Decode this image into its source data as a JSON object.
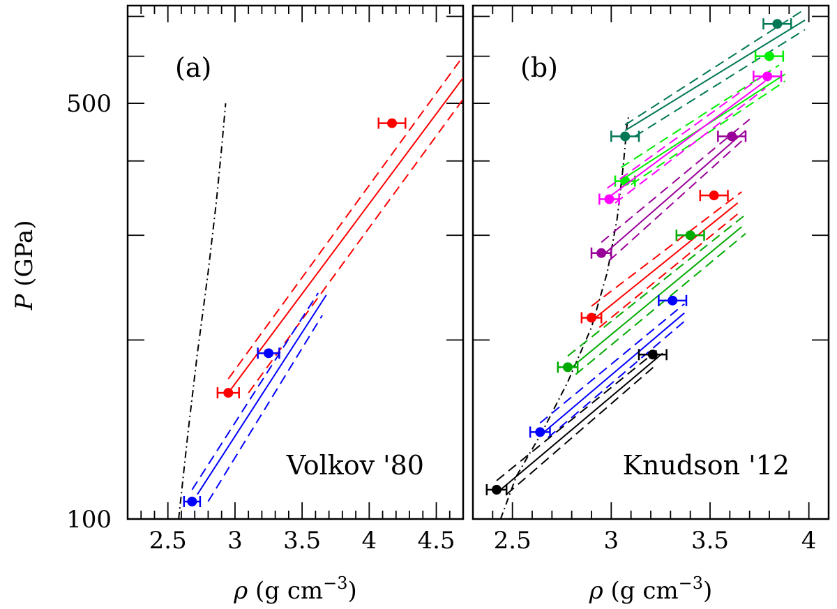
{
  "chart_data": {
    "type": "scatter",
    "ylabel": "P (GPa)",
    "ylabel_symbol": "P",
    "ylabel_unit": "(GPa)",
    "y_scale": "log",
    "ylim": [
      100,
      730
    ],
    "ytick_labels": [
      {
        "value": 100,
        "label": "100"
      },
      {
        "value": 500,
        "label": "500"
      }
    ],
    "ymajor_ticks": [
      100,
      200,
      300,
      400,
      500,
      600,
      700
    ],
    "xlabel_symbol": "ρ",
    "xlabel_unit": "(g cm",
    "xlabel_exp": "−3",
    "xlabel_close": ")",
    "panels": [
      {
        "id": "a",
        "panel_label": "(a)",
        "annotation": "Volkov '80",
        "xlim": [
          2.2,
          4.7
        ],
        "xticks": [
          "2.5",
          "3",
          "3.5",
          "4",
          "4.5"
        ],
        "xtick_values": [
          2.5,
          3,
          3.5,
          4,
          4.5
        ],
        "xminor_step": 0.1,
        "dashdot_curve": [
          [
            2.58,
            100
          ],
          [
            2.65,
            140
          ],
          [
            2.72,
            190
          ],
          [
            2.8,
            260
          ],
          [
            2.86,
            340
          ],
          [
            2.9,
            420
          ],
          [
            2.93,
            500
          ]
        ],
        "series": [
          {
            "name": "red",
            "color": "#ff0000",
            "points": [
              {
                "x": 2.95,
                "y": 163,
                "xerr": 0.08
              },
              {
                "x": 4.17,
                "y": 463,
                "xerr": 0.1
              }
            ],
            "solid": [
              [
                2.95,
                163
              ],
              [
                4.7,
                552
              ]
            ],
            "dashed_upper": [
              [
                2.95,
                172
              ],
              [
                4.7,
                600
              ]
            ],
            "dashed_lower": [
              [
                3.1,
                163
              ],
              [
                4.7,
                508
              ]
            ]
          },
          {
            "name": "blue",
            "color": "#0000ff",
            "points": [
              {
                "x": 2.68,
                "y": 107,
                "xerr": 0.06
              },
              {
                "x": 3.25,
                "y": 190,
                "xerr": 0.08
              }
            ],
            "solid": [
              [
                2.72,
                110
              ],
              [
                3.68,
                238
              ]
            ],
            "dashed_upper": [
              [
                2.68,
                112
              ],
              [
                3.62,
                240
              ]
            ],
            "dashed_lower": [
              [
                2.8,
                107
              ],
              [
                3.65,
                220
              ]
            ]
          }
        ]
      },
      {
        "id": "b",
        "panel_label": "(b)",
        "annotation": "Knudson '12",
        "xlim": [
          2.3,
          4.1
        ],
        "xticks": [
          "2.5",
          "3",
          "3.5",
          "4"
        ],
        "xtick_values": [
          2.5,
          3,
          3.5,
          4
        ],
        "xminor_step": 0.1,
        "dashdot_curve": [
          [
            2.44,
            100
          ],
          [
            2.52,
            118
          ],
          [
            2.65,
            140
          ],
          [
            2.78,
            170
          ],
          [
            2.9,
            210
          ],
          [
            2.98,
            260
          ],
          [
            3.03,
            320
          ],
          [
            3.06,
            390
          ],
          [
            3.08,
            460
          ],
          [
            3.09,
            480
          ]
        ],
        "series": [
          {
            "name": "dark-green",
            "color": "#007755",
            "points": [
              {
                "x": 3.07,
                "y": 440,
                "xerr": 0.07
              },
              {
                "x": 3.84,
                "y": 680,
                "xerr": 0.07
              }
            ],
            "solid": [
              [
                3.07,
                450
              ],
              [
                3.98,
                690
              ]
            ],
            "dashed_upper": [
              [
                3.07,
                460
              ],
              [
                3.98,
                720
              ]
            ],
            "dashed_lower": [
              [
                3.12,
                440
              ],
              [
                3.98,
                665
              ]
            ]
          },
          {
            "name": "bright-green",
            "color": "#00ee00",
            "points": [
              {
                "x": 3.07,
                "y": 370,
                "xerr": 0.05
              },
              {
                "x": 3.8,
                "y": 600,
                "xerr": 0.07
              }
            ],
            "solid": [
              [
                3.07,
                375
              ],
              [
                3.88,
                560
              ]
            ],
            "dashed_upper": [
              [
                3.05,
                390
              ],
              [
                3.85,
                580
              ]
            ],
            "dashed_lower": [
              [
                3.1,
                365
              ],
              [
                3.88,
                545
              ]
            ]
          },
          {
            "name": "magenta",
            "color": "#ff00ff",
            "points": [
              {
                "x": 2.99,
                "y": 345,
                "xerr": 0.05
              },
              {
                "x": 3.79,
                "y": 555,
                "xerr": 0.07
              }
            ],
            "solid": [
              [
                3.0,
                350
              ],
              [
                3.78,
                545
              ]
            ],
            "dashed_upper": [
              [
                2.98,
                360
              ],
              [
                3.78,
                560
              ]
            ],
            "dashed_lower": [
              [
                3.02,
                340
              ],
              [
                3.78,
                530
              ]
            ]
          },
          {
            "name": "purple",
            "color": "#990099",
            "points": [
              {
                "x": 2.95,
                "y": 280,
                "xerr": 0.05
              },
              {
                "x": 3.61,
                "y": 440,
                "xerr": 0.07
              }
            ],
            "solid": [
              [
                2.97,
                280
              ],
              [
                3.68,
                450
              ]
            ],
            "dashed_upper": [
              [
                2.95,
                292
              ],
              [
                3.7,
                470
              ]
            ],
            "dashed_lower": [
              [
                2.99,
                272
              ],
              [
                3.68,
                438
              ]
            ]
          },
          {
            "name": "red",
            "color": "#ff0000",
            "points": [
              {
                "x": 2.9,
                "y": 218,
                "xerr": 0.05
              },
              {
                "x": 3.52,
                "y": 350,
                "xerr": 0.07
              }
            ],
            "solid": [
              [
                2.92,
                218
              ],
              [
                3.64,
                340
              ]
            ],
            "dashed_upper": [
              [
                2.9,
                228
              ],
              [
                3.66,
                355
              ]
            ],
            "dashed_lower": [
              [
                2.94,
                210
              ],
              [
                3.66,
                330
              ]
            ]
          },
          {
            "name": "green",
            "color": "#00aa00",
            "points": [
              {
                "x": 2.78,
                "y": 180,
                "xerr": 0.05
              },
              {
                "x": 3.4,
                "y": 300,
                "xerr": 0.07
              }
            ],
            "solid": [
              [
                2.8,
                180
              ],
              [
                3.66,
                310
              ]
            ],
            "dashed_upper": [
              [
                2.78,
                188
              ],
              [
                3.68,
                325
              ]
            ],
            "dashed_lower": [
              [
                2.82,
                175
              ],
              [
                3.68,
                302
              ]
            ]
          },
          {
            "name": "blue",
            "color": "#0000ff",
            "points": [
              {
                "x": 2.64,
                "y": 140,
                "xerr": 0.05
              },
              {
                "x": 3.31,
                "y": 233,
                "xerr": 0.07
              }
            ],
            "solid": [
              [
                2.66,
                140
              ],
              [
                3.37,
                222
              ]
            ],
            "dashed_upper": [
              [
                2.64,
                145
              ],
              [
                3.37,
                230
              ]
            ],
            "dashed_lower": [
              [
                2.68,
                137
              ],
              [
                3.37,
                215
              ]
            ]
          },
          {
            "name": "black",
            "color": "#000000",
            "points": [
              {
                "x": 2.42,
                "y": 112,
                "xerr": 0.05
              },
              {
                "x": 3.21,
                "y": 189,
                "xerr": 0.07
              }
            ],
            "solid": [
              [
                2.44,
                112
              ],
              [
                3.26,
                190
              ]
            ],
            "dashed_upper": [
              [
                2.42,
                116
              ],
              [
                3.23,
                192
              ]
            ],
            "dashed_lower": [
              [
                2.47,
                110
              ],
              [
                3.23,
                182
              ]
            ]
          }
        ]
      }
    ]
  }
}
